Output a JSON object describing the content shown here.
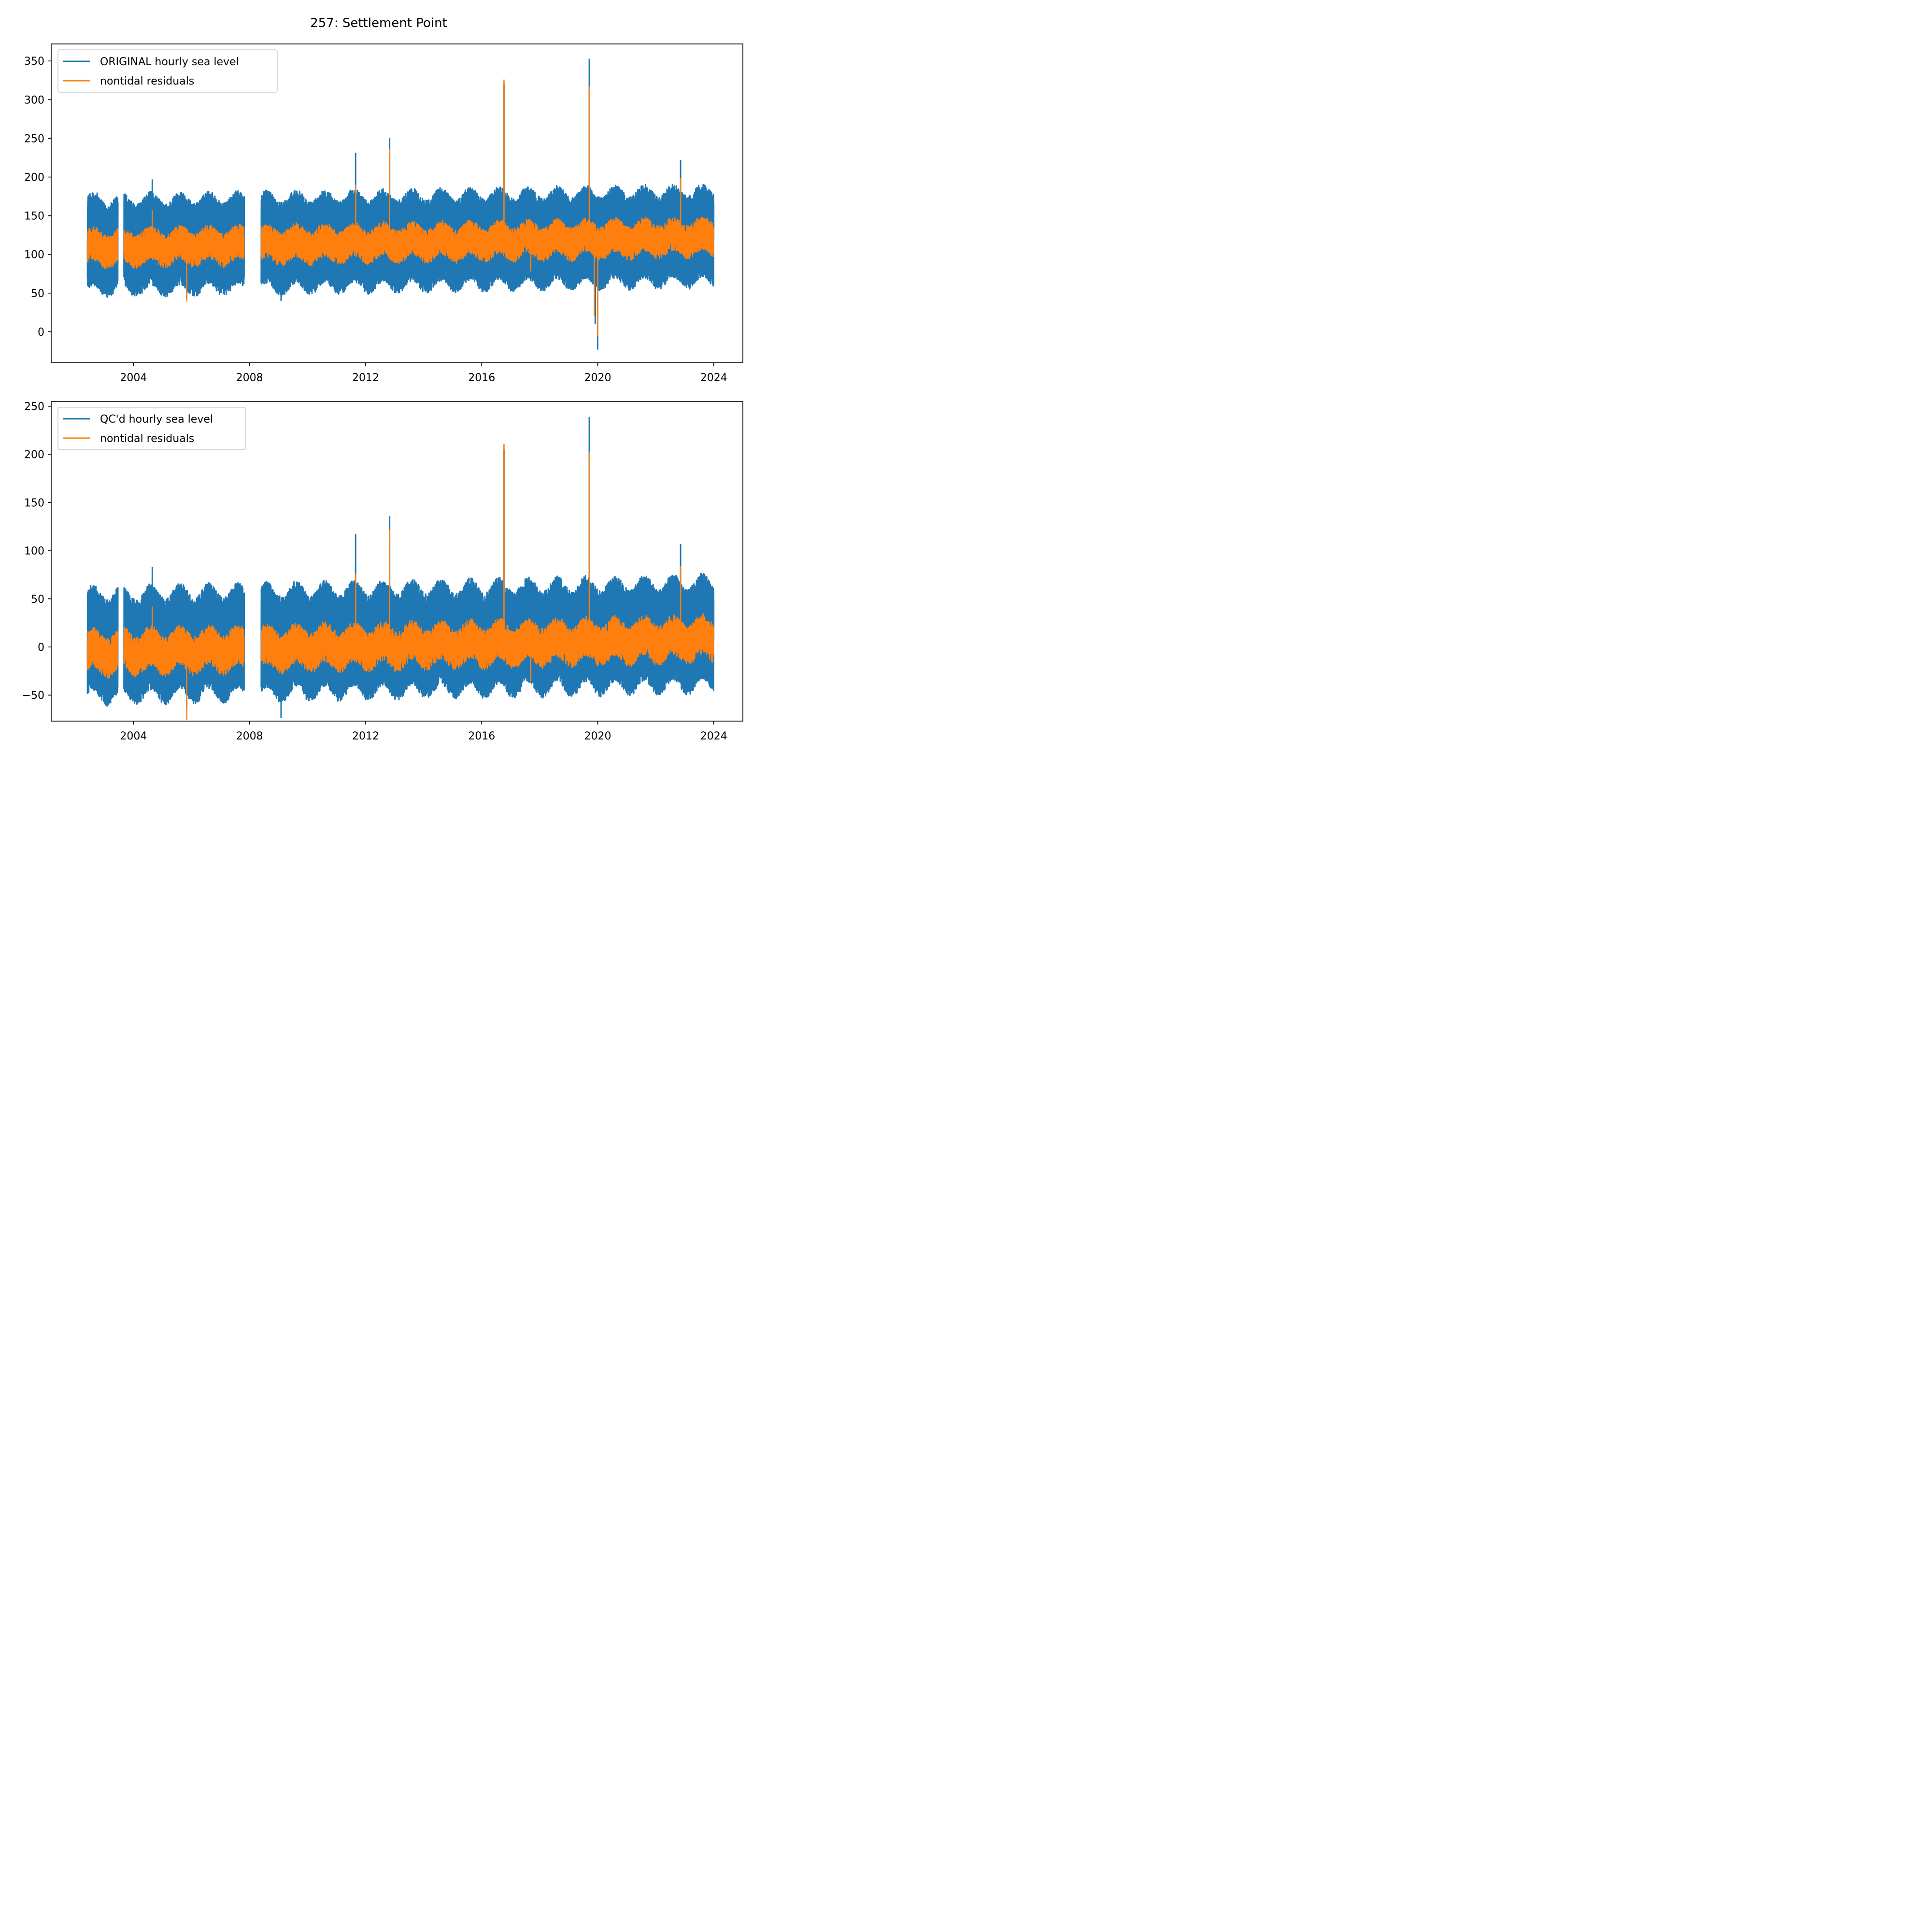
{
  "figure": {
    "suptitle": "257: Settlement Point"
  },
  "colors": {
    "original": "#1f77b4",
    "residual": "#ff7f0e"
  },
  "chart_data": [
    {
      "type": "line",
      "title": "",
      "xlabel": "",
      "ylabel": "",
      "x_scale": "date",
      "xlim": [
        "2001-03-01",
        "2025-01-01"
      ],
      "ylim": [
        -40,
        372
      ],
      "xticks": [
        "2004",
        "2008",
        "2012",
        "2016",
        "2020",
        "2024"
      ],
      "yticks": [
        "0",
        "50",
        "100",
        "150",
        "200",
        "250",
        "300",
        "350"
      ],
      "grid": false,
      "legend_position": "top-left",
      "data_gaps": [
        [
          "2003-06-20",
          "2003-09-01"
        ],
        [
          "2007-10-25",
          "2008-05-25"
        ]
      ],
      "x_range": [
        "2002-06-01",
        "2023-12-31"
      ],
      "series": [
        {
          "name": "ORIGINAL hourly sea level",
          "color": "#1f77b4",
          "typical_min": 60,
          "typical_max": 175,
          "values": [
            {
              "x": "2002-06-01",
              "y": 70
            },
            {
              "x": "2002-10-01",
              "y": 180
            },
            {
              "x": "2004-08-25",
              "y": 197
            },
            {
              "x": "2005-11-01",
              "y": 43
            },
            {
              "x": "2009-02-01",
              "y": 40
            },
            {
              "x": "2011-08-28",
              "y": 231
            },
            {
              "x": "2012-10-29",
              "y": 251
            },
            {
              "x": "2016-10-08",
              "y": 320
            },
            {
              "x": "2019-09-17",
              "y": 353
            },
            {
              "x": "2019-12-01",
              "y": 10
            },
            {
              "x": "2019-12-31",
              "y": -23
            },
            {
              "x": "2022-11-09",
              "y": 222
            },
            {
              "x": "2023-12-31",
              "y": 165
            }
          ]
        },
        {
          "name": "nontidal residuals",
          "color": "#ff7f0e",
          "typical_min": 95,
          "typical_max": 135,
          "values": [
            {
              "x": "2004-08-25",
              "y": 157
            },
            {
              "x": "2005-11-01",
              "y": 39
            },
            {
              "x": "2011-08-28",
              "y": 190
            },
            {
              "x": "2012-10-29",
              "y": 236
            },
            {
              "x": "2016-10-08",
              "y": 326
            },
            {
              "x": "2017-09-10",
              "y": 78
            },
            {
              "x": "2019-09-17",
              "y": 317
            },
            {
              "x": "2019-11-20",
              "y": 20
            },
            {
              "x": "2019-12-31",
              "y": -5
            },
            {
              "x": "2022-11-09",
              "y": 199
            }
          ]
        }
      ]
    },
    {
      "type": "line",
      "title": "",
      "xlabel": "",
      "ylabel": "",
      "x_scale": "date",
      "xlim": [
        "2001-03-01",
        "2025-01-01"
      ],
      "ylim": [
        -77,
        255
      ],
      "xticks": [
        "2004",
        "2008",
        "2012",
        "2016",
        "2020",
        "2024"
      ],
      "yticks": [
        "−50",
        "0",
        "50",
        "100",
        "150",
        "200",
        "250"
      ],
      "grid": false,
      "legend_position": "top-left",
      "data_gaps": [
        [
          "2003-06-20",
          "2003-09-01"
        ],
        [
          "2007-10-25",
          "2008-05-25"
        ]
      ],
      "x_range": [
        "2002-06-01",
        "2023-12-31"
      ],
      "series": [
        {
          "name": "QC'd hourly sea level",
          "color": "#1f77b4",
          "typical_min": -45,
          "typical_max": 60,
          "values": [
            {
              "x": "2002-06-01",
              "y": -30
            },
            {
              "x": "2004-08-25",
              "y": 83
            },
            {
              "x": "2005-11-01",
              "y": -65
            },
            {
              "x": "2009-02-01",
              "y": -74
            },
            {
              "x": "2011-08-28",
              "y": 117
            },
            {
              "x": "2012-10-29",
              "y": 136
            },
            {
              "x": "2016-10-08",
              "y": 205
            },
            {
              "x": "2019-09-17",
              "y": 239
            },
            {
              "x": "2022-11-09",
              "y": 107
            },
            {
              "x": "2023-12-31",
              "y": 50
            }
          ]
        },
        {
          "name": "nontidal residuals",
          "color": "#ff7f0e",
          "typical_min": -18,
          "typical_max": 20,
          "values": [
            {
              "x": "2004-08-25",
              "y": 42
            },
            {
              "x": "2005-11-01",
              "y": -76
            },
            {
              "x": "2011-08-28",
              "y": 76
            },
            {
              "x": "2012-10-29",
              "y": 122
            },
            {
              "x": "2016-10-08",
              "y": 211
            },
            {
              "x": "2017-09-10",
              "y": -36
            },
            {
              "x": "2019-09-17",
              "y": 202
            },
            {
              "x": "2022-11-09",
              "y": 84
            }
          ]
        }
      ]
    }
  ]
}
